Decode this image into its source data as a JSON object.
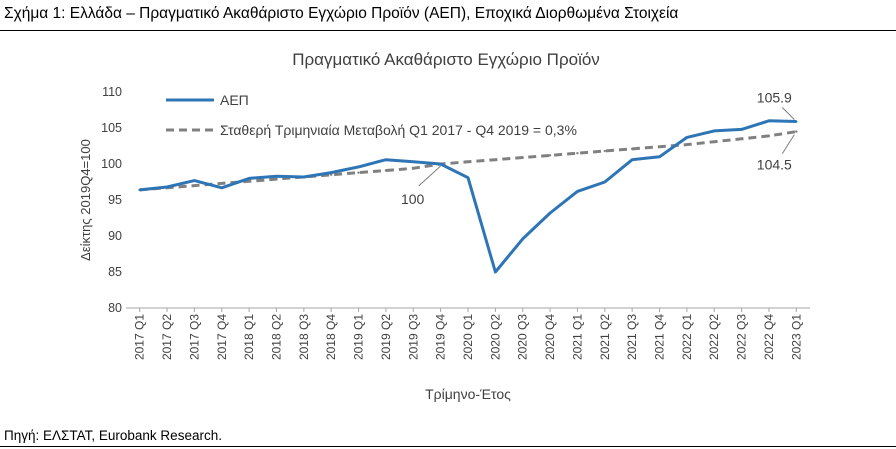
{
  "figure_title": "Σχήμα 1: Ελλάδα – Πραγματικό Ακαθάριστο Εγχώριο Προϊόν (ΑΕΠ), Εποχικά Διορθωμένα Στοιχεία",
  "source": "Πηγή: ΕΛΣΤΑΤ, Eurobank Research.",
  "chart_data": {
    "type": "line",
    "title": "Πραγματικό Ακαθάριστο Εγχώριο Προϊόν",
    "xlabel": "Τρίμηνο-Έτος",
    "ylabel": "Δείκτης 2019Q4=100",
    "ylim": [
      80,
      110
    ],
    "yticks": [
      80,
      85,
      90,
      95,
      100,
      105,
      110
    ],
    "grid": false,
    "legend_position": "top-left",
    "categories": [
      "2017 Q1",
      "2017 Q2",
      "2017 Q3",
      "2017 Q4",
      "2018 Q1",
      "2018 Q2",
      "2018 Q3",
      "2018 Q4",
      "2019 Q1",
      "2019 Q2",
      "2019 Q3",
      "2019 Q4",
      "2020 Q1",
      "2020 Q2",
      "2020 Q3",
      "2020 Q4",
      "2021 Q1",
      "2021 Q2",
      "2021 Q3",
      "2021 Q4",
      "2022 Q1",
      "2022 Q2",
      "2022 Q3",
      "2022 Q4",
      "2023 Q1"
    ],
    "series": [
      {
        "name": "ΑΕΠ",
        "style": "solid",
        "color": "#2e75b6",
        "values": [
          96.4,
          96.8,
          97.7,
          96.7,
          98.0,
          98.3,
          98.2,
          98.8,
          99.6,
          100.6,
          100.3,
          100.0,
          98.1,
          85.0,
          89.6,
          93.2,
          96.2,
          97.5,
          100.6,
          101.0,
          103.7,
          104.6,
          104.8,
          106.0,
          105.9
        ]
      },
      {
        "name": "Σταθερή Τριμηνιαία Μεταβολή Q1 2017 - Q4 2019 = 0,3%",
        "style": "dashed",
        "color": "#808080",
        "values": [
          96.4,
          96.7,
          97.0,
          97.3,
          97.6,
          97.9,
          98.2,
          98.5,
          98.8,
          99.1,
          99.4,
          100.0,
          100.3,
          100.6,
          100.9,
          101.2,
          101.5,
          101.8,
          102.1,
          102.4,
          102.7,
          103.1,
          103.5,
          103.9,
          104.5
        ]
      }
    ],
    "annotations": [
      {
        "text": "100",
        "category": "2019 Q4",
        "value": 100.0
      },
      {
        "text": "105.9",
        "category": "2023 Q1",
        "value": 105.9
      },
      {
        "text": "104.5",
        "category": "2023 Q1",
        "value": 104.5
      }
    ]
  }
}
